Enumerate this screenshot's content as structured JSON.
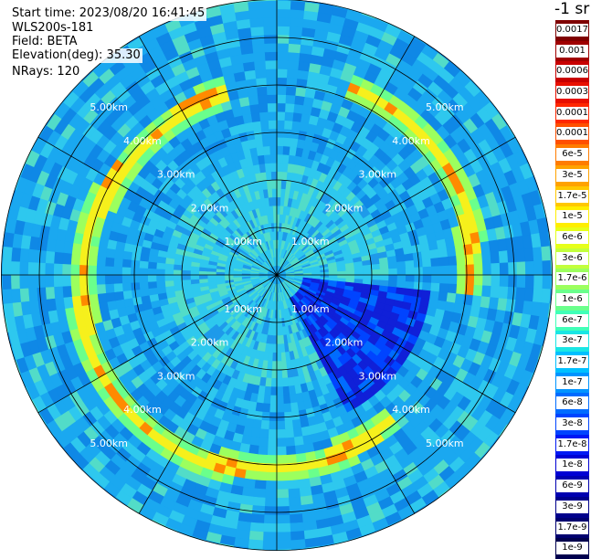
{
  "header": {
    "start_time": "Start time: 2023/08/20 16:41:45",
    "instrument": "WLS200s-181",
    "field": "Field: BETA",
    "elevation": "Elevation(deg): 35.30",
    "nrays": "NRays: 120"
  },
  "colorbar": {
    "title": "-1 sr",
    "bins": [
      {
        "label": "0.0017",
        "color": "#7f0000"
      },
      {
        "label": "0.001",
        "color": "#a00000"
      },
      {
        "label": "0.0006",
        "color": "#c80000"
      },
      {
        "label": "0.0003",
        "color": "#e81000"
      },
      {
        "label": "0.00017",
        "color": "#ff2800"
      },
      {
        "label": "0.0001",
        "color": "#ff5000"
      },
      {
        "label": "6e-5",
        "color": "#ff7c00"
      },
      {
        "label": "3e-5",
        "color": "#ffa200"
      },
      {
        "label": "1.7e-5",
        "color": "#ffc800"
      },
      {
        "label": "1e-5",
        "color": "#ffee00"
      },
      {
        "label": "6e-6",
        "color": "#e6ff1a"
      },
      {
        "label": "3e-6",
        "color": "#c2ff3c"
      },
      {
        "label": "1.7e-6",
        "color": "#9cff5e"
      },
      {
        "label": "1e-6",
        "color": "#6aff8c"
      },
      {
        "label": "6e-7",
        "color": "#40ffb8"
      },
      {
        "label": "3e-7",
        "color": "#1ae6e4"
      },
      {
        "label": "1.7e-7",
        "color": "#00c0ff"
      },
      {
        "label": "1e-7",
        "color": "#0094ff"
      },
      {
        "label": "6e-8",
        "color": "#006cff"
      },
      {
        "label": "3e-8",
        "color": "#0044ff"
      },
      {
        "label": "1.7e-8",
        "color": "#0018f4"
      },
      {
        "label": "1e-8",
        "color": "#0000d4"
      },
      {
        "label": "6e-9",
        "color": "#0000b0"
      },
      {
        "label": "3e-9",
        "color": "#00008c"
      },
      {
        "label": "1.7e-9",
        "color": "#000070"
      },
      {
        "label": "1e-9",
        "color": "#00004e"
      }
    ]
  },
  "range_rings": {
    "labels": [
      "1.00km",
      "2.00km",
      "3.00km",
      "4.00km",
      "5.00km"
    ],
    "km": [
      1,
      2,
      3,
      4,
      5
    ],
    "max_km": 5.8
  },
  "spokes_deg": 30,
  "features": {
    "background_colors": [
      "#1aa8f0",
      "#2ec8ee",
      "#0f88e6",
      "#52dcc8",
      "#1e9aea"
    ],
    "aerosol_ring_km": 4.0,
    "aerosol_ring_color": "#f6f01c",
    "aerosol_ring_core": "#ff8a00",
    "shadow_sector_color": "#1020d8"
  }
}
